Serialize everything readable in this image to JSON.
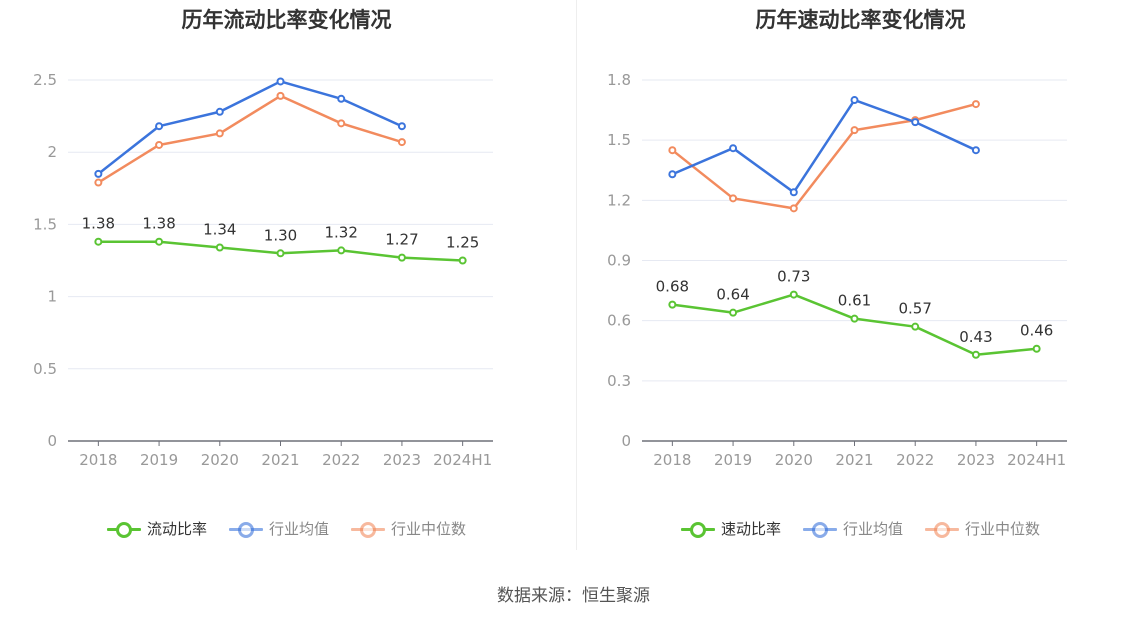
{
  "source_text": "数据来源：恒生聚源",
  "chart_data": [
    {
      "type": "line",
      "title": "历年流动比率变化情况",
      "categories": [
        "2018",
        "2019",
        "2020",
        "2021",
        "2022",
        "2023",
        "2024H1"
      ],
      "y_ticks": [
        "0",
        "0.5",
        "1",
        "1.5",
        "2",
        "2.5"
      ],
      "ylim": [
        0,
        2.5
      ],
      "grid": true,
      "legend_position": "bottom-center",
      "series": [
        {
          "name": "流动比率",
          "color": "#5ac433",
          "values": [
            1.38,
            1.38,
            1.34,
            1.3,
            1.32,
            1.27,
            1.25
          ],
          "labels": [
            "1.38",
            "1.38",
            "1.34",
            "1.30",
            "1.32",
            "1.27",
            "1.25"
          ],
          "show_labels": true
        },
        {
          "name": "行业均值",
          "color": "#3b74dc",
          "values": [
            1.85,
            2.18,
            2.28,
            2.49,
            2.37,
            2.18,
            null
          ],
          "show_labels": false
        },
        {
          "name": "行业中位数",
          "color": "#f28b5e",
          "values": [
            1.79,
            2.05,
            2.13,
            2.39,
            2.2,
            2.07,
            null
          ],
          "show_labels": false
        }
      ]
    },
    {
      "type": "line",
      "title": "历年速动比率变化情况",
      "categories": [
        "2018",
        "2019",
        "2020",
        "2021",
        "2022",
        "2023",
        "2024H1"
      ],
      "y_ticks": [
        "0",
        "0.3",
        "0.6",
        "0.9",
        "1.2",
        "1.5",
        "1.8"
      ],
      "ylim": [
        0,
        1.8
      ],
      "grid": true,
      "legend_position": "bottom-center",
      "series": [
        {
          "name": "速动比率",
          "color": "#5ac433",
          "values": [
            0.68,
            0.64,
            0.73,
            0.61,
            0.57,
            0.43,
            0.46
          ],
          "labels": [
            "0.68",
            "0.64",
            "0.73",
            "0.61",
            "0.57",
            "0.43",
            "0.46"
          ],
          "show_labels": true
        },
        {
          "name": "行业均值",
          "color": "#3b74dc",
          "values": [
            1.33,
            1.46,
            1.24,
            1.7,
            1.59,
            1.45,
            null
          ],
          "show_labels": false
        },
        {
          "name": "行业中位数",
          "color": "#f28b5e",
          "values": [
            1.45,
            1.21,
            1.16,
            1.55,
            1.6,
            1.68,
            null
          ],
          "show_labels": false
        }
      ]
    }
  ]
}
